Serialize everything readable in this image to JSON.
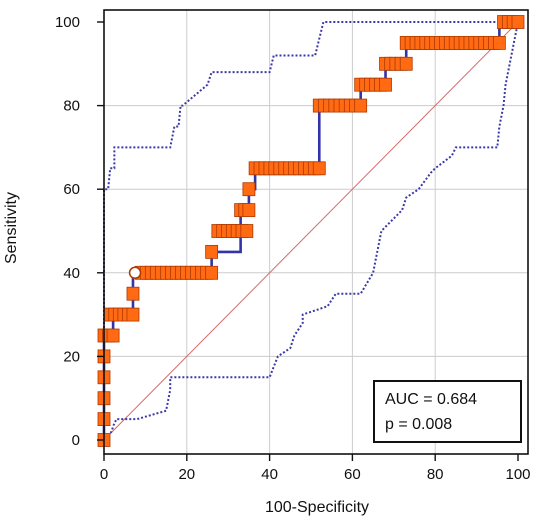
{
  "chart_data": {
    "type": "line",
    "xlabel": "100-Specificity",
    "ylabel": "Sensitivity",
    "xlim": [
      0,
      100
    ],
    "ylim": [
      0,
      100
    ],
    "xticks": [
      "0",
      "20",
      "40",
      "60",
      "80",
      "100"
    ],
    "yticks": [
      "0",
      "20",
      "40",
      "60",
      "80",
      "100"
    ],
    "grid": true,
    "annotations": {
      "auc": "AUC = 0.684",
      "p": "p = 0.008"
    },
    "colors": {
      "roc_line": "#3333aa",
      "marker_fill": "#ff6a13",
      "marker_edge": "#b03a00",
      "ci_line": "#3a3aa8",
      "diagonal": "#d46a6a",
      "grid": "#cccccc"
    },
    "series": [
      {
        "type": "roc",
        "x": [
          0,
          0,
          0,
          0,
          0,
          0,
          2.2,
          2.2,
          7,
          7,
          26,
          26,
          33,
          33,
          35,
          35,
          36.5,
          36.5,
          52,
          52,
          62,
          62,
          68,
          68,
          73,
          73,
          95.5,
          95.5,
          100
        ],
        "y": [
          0,
          5,
          10,
          15,
          20,
          25,
          25,
          30,
          30,
          40,
          40,
          45,
          45,
          55,
          55,
          60,
          60,
          65,
          65,
          80,
          80,
          85,
          85,
          90,
          90,
          95,
          95,
          100,
          100
        ]
      },
      {
        "type": "marker-runs",
        "runs": [
          {
            "y": 0,
            "x0": 0,
            "x1": 0
          },
          {
            "y": 5,
            "x0": 0,
            "x1": 0
          },
          {
            "y": 10,
            "x0": 0,
            "x1": 0
          },
          {
            "y": 15,
            "x0": 0,
            "x1": 0
          },
          {
            "y": 20,
            "x0": 0,
            "x1": 0
          },
          {
            "y": 25,
            "x0": 0,
            "x1": 2.2
          },
          {
            "y": 30,
            "x0": 1.5,
            "x1": 7
          },
          {
            "y": 35,
            "x0": 7,
            "x1": 7
          },
          {
            "y": 40,
            "x0": 9,
            "x1": 26
          },
          {
            "y": 45,
            "x0": 26,
            "x1": 26
          },
          {
            "y": 50,
            "x0": 27.5,
            "x1": 34.5
          },
          {
            "y": 55,
            "x0": 33,
            "x1": 35
          },
          {
            "y": 60,
            "x0": 35,
            "x1": 35
          },
          {
            "y": 65,
            "x0": 36.5,
            "x1": 52
          },
          {
            "y": 80,
            "x0": 52,
            "x1": 62
          },
          {
            "y": 85,
            "x0": 62,
            "x1": 68
          },
          {
            "y": 90,
            "x0": 68,
            "x1": 73
          },
          {
            "y": 95,
            "x0": 73,
            "x1": 95.5
          },
          {
            "y": 100,
            "x0": 96.5,
            "x1": 100
          }
        ],
        "highlight_point": {
          "x": 7.5,
          "y": 40
        }
      },
      {
        "type": "ci-upper",
        "x": [
          0,
          0,
          1,
          1.5,
          2.5,
          2.5,
          16,
          17,
          18,
          18.5,
          19,
          25,
          26,
          40,
          41,
          51,
          53,
          100
        ],
        "y": [
          0,
          60,
          60,
          65,
          65,
          70,
          70,
          75,
          75,
          80,
          80,
          85,
          88,
          88,
          92,
          92,
          100,
          100
        ]
      },
      {
        "type": "ci-lower",
        "x": [
          0,
          1,
          1,
          1.8,
          2.3,
          3,
          8,
          15,
          16,
          16,
          38,
          39,
          40,
          40,
          42,
          45,
          46,
          48,
          48,
          54,
          56,
          62,
          65,
          66,
          67,
          72,
          73,
          76,
          79,
          80,
          80,
          84,
          85,
          86,
          87,
          95,
          95.5,
          96.5,
          97,
          98,
          100
        ],
        "y": [
          0,
          0,
          1,
          2,
          3.5,
          5,
          5,
          7,
          12,
          15,
          15,
          15,
          15,
          15,
          20,
          22,
          25,
          28,
          30,
          32,
          35,
          35,
          40,
          45,
          50,
          55,
          58,
          60,
          64,
          65,
          65,
          68,
          70,
          70,
          70,
          70,
          75,
          80,
          85,
          90,
          100
        ]
      }
    ]
  }
}
